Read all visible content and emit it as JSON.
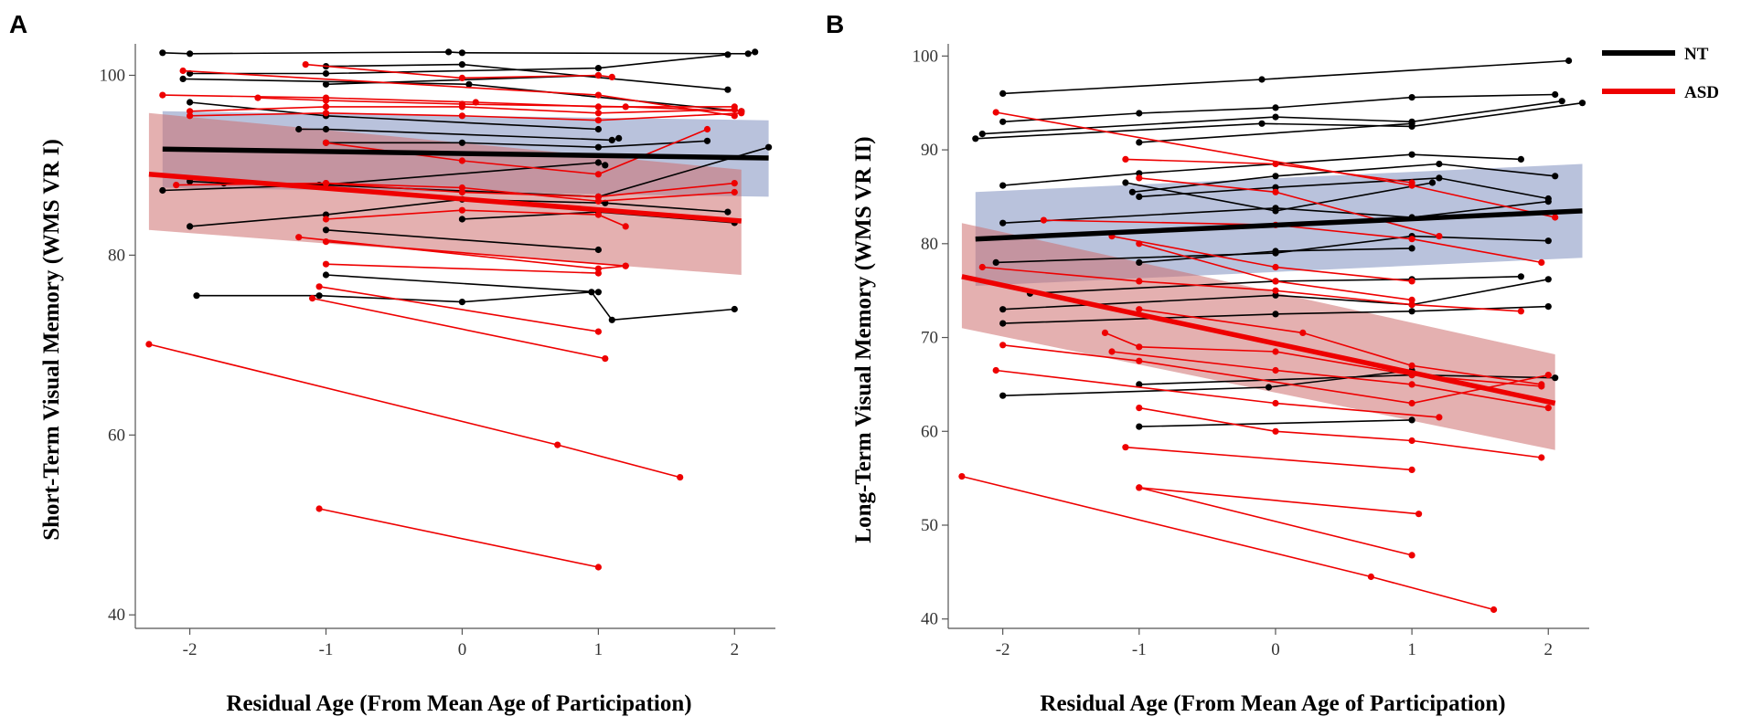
{
  "colors": {
    "nt": "#000000",
    "asd": "#ee0000",
    "nt_band": "#7f8fbf",
    "asd_band": "#cd6f6f",
    "axis": "#555555"
  },
  "legend": [
    {
      "label": "NT",
      "color": "#000000"
    },
    {
      "label": "ASD",
      "color": "#ee0000"
    }
  ],
  "chart_data": [
    {
      "type": "line",
      "panel": "A",
      "xlabel": "Residual Age (From Mean Age of Participation)",
      "ylabel": "Short-Term Visual Memory (WMS VR I)",
      "xlim": [
        -2.4,
        2.3
      ],
      "ylim": [
        38.5,
        103.5
      ],
      "xticks": [
        -2,
        -1,
        0,
        1,
        2
      ],
      "xtick_labels": [
        "-2",
        "-1",
        "0",
        "1",
        "2"
      ],
      "yticks": [
        40,
        60,
        80,
        100
      ],
      "ytick_labels": [
        "40",
        "60",
        "80",
        "100"
      ],
      "fits": [
        {
          "group": "NT",
          "x": [
            -2.2,
            2.25
          ],
          "y": [
            91.8,
            90.8
          ],
          "ci_upper": [
            96.0,
            95.0
          ],
          "ci_lower": [
            87.5,
            86.5
          ]
        },
        {
          "group": "ASD",
          "x": [
            -2.3,
            2.05
          ],
          "y": [
            89.0,
            83.8
          ],
          "ci_upper": [
            95.8,
            89.5
          ],
          "ci_lower": [
            82.8,
            77.8
          ]
        }
      ],
      "participants": [
        {
          "group": "NT",
          "x": [
            -2.2,
            -2.0,
            -0.1,
            0.0,
            2.1,
            2.15
          ],
          "y": [
            102.5,
            102.4,
            102.6,
            102.5,
            102.4,
            102.6
          ]
        },
        {
          "group": "NT",
          "x": [
            -2.0,
            -1.0,
            1.0,
            1.95
          ],
          "y": [
            100.2,
            100.2,
            100.8,
            102.3
          ]
        },
        {
          "group": "NT",
          "x": [
            -2.05,
            0.05,
            2.05
          ],
          "y": [
            99.6,
            99.0,
            96.0
          ]
        },
        {
          "group": "NT",
          "x": [
            -1.0,
            0.0,
            1.95
          ],
          "y": [
            101.0,
            101.2,
            98.4
          ]
        },
        {
          "group": "NT",
          "x": [
            -1.0,
            1.0
          ],
          "y": [
            99.0,
            100.0
          ]
        },
        {
          "group": "NT",
          "x": [
            -2.0,
            -1.0,
            1.0
          ],
          "y": [
            97.0,
            95.5,
            94.0
          ]
        },
        {
          "group": "NT",
          "x": [
            -1.2,
            -1.0,
            1.1,
            1.15
          ],
          "y": [
            94.0,
            94.0,
            92.8,
            93.0
          ]
        },
        {
          "group": "NT",
          "x": [
            -1.0,
            0.0,
            1.0,
            1.8
          ],
          "y": [
            92.5,
            92.5,
            92.0,
            92.7
          ]
        },
        {
          "group": "NT",
          "x": [
            -2.2,
            -1.05,
            1.0,
            1.05
          ],
          "y": [
            87.2,
            87.8,
            90.3,
            90.0
          ]
        },
        {
          "group": "NT",
          "x": [
            -2.0,
            -1.75,
            -1.0,
            1.0,
            2.25
          ],
          "y": [
            88.2,
            88.0,
            87.8,
            86.5,
            92.0
          ]
        },
        {
          "group": "NT",
          "x": [
            -2.0,
            -1.0,
            0.0,
            1.05,
            1.95
          ],
          "y": [
            83.2,
            84.5,
            86.2,
            85.8,
            84.8
          ]
        },
        {
          "group": "NT",
          "x": [
            0.0,
            1.0,
            2.0
          ],
          "y": [
            84.0,
            84.8,
            83.6
          ]
        },
        {
          "group": "NT",
          "x": [
            -1.0,
            1.0
          ],
          "y": [
            82.8,
            80.6
          ]
        },
        {
          "group": "NT",
          "x": [
            -1.0,
            1.0
          ],
          "y": [
            77.8,
            75.9
          ]
        },
        {
          "group": "NT",
          "x": [
            -1.95,
            -1.05,
            0.0,
            0.95,
            1.1,
            2.0
          ],
          "y": [
            75.5,
            75.5,
            74.8,
            75.9,
            72.8,
            74.0
          ]
        },
        {
          "group": "ASD",
          "x": [
            -1.15,
            0.0,
            1.0,
            1.1
          ],
          "y": [
            101.2,
            99.7,
            100.0,
            99.8
          ]
        },
        {
          "group": "ASD",
          "x": [
            -2.05,
            1.0,
            2.0
          ],
          "y": [
            100.5,
            97.8,
            95.5
          ]
        },
        {
          "group": "ASD",
          "x": [
            -2.2,
            -1.0,
            0.1,
            1.0,
            2.0
          ],
          "y": [
            97.8,
            97.5,
            97.0,
            96.5,
            96.5
          ]
        },
        {
          "group": "ASD",
          "x": [
            -1.5,
            -1.0,
            0.0,
            1.2,
            2.05
          ],
          "y": [
            97.5,
            97.2,
            96.8,
            96.5,
            96.0
          ]
        },
        {
          "group": "ASD",
          "x": [
            -2.0,
            -1.0,
            0.0,
            1.0,
            2.0
          ],
          "y": [
            96.0,
            96.5,
            96.5,
            95.8,
            96.2
          ]
        },
        {
          "group": "ASD",
          "x": [
            -2.0,
            -1.0,
            0.0,
            1.0,
            2.05
          ],
          "y": [
            95.5,
            95.8,
            95.5,
            95.0,
            95.8
          ]
        },
        {
          "group": "ASD",
          "x": [
            -1.0,
            0.0,
            1.0,
            1.8
          ],
          "y": [
            92.5,
            90.5,
            89.0,
            94.0
          ]
        },
        {
          "group": "ASD",
          "x": [
            -2.1,
            -1.0,
            0.0,
            1.0,
            2.0
          ],
          "y": [
            87.8,
            88.0,
            87.0,
            86.5,
            88.0
          ]
        },
        {
          "group": "ASD",
          "x": [
            -1.0,
            0.0,
            1.0,
            2.0
          ],
          "y": [
            88.0,
            87.5,
            86.0,
            87.0
          ]
        },
        {
          "group": "ASD",
          "x": [
            -1.0,
            0.0,
            1.0,
            1.2
          ],
          "y": [
            84.0,
            85.0,
            84.5,
            83.2
          ]
        },
        {
          "group": "ASD",
          "x": [
            -1.2,
            1.0,
            1.2
          ],
          "y": [
            82.0,
            78.5,
            78.8
          ]
        },
        {
          "group": "ASD",
          "x": [
            -1.0,
            1.2
          ],
          "y": [
            81.5,
            78.8
          ]
        },
        {
          "group": "ASD",
          "x": [
            -1.0,
            1.0
          ],
          "y": [
            79.0,
            78.0
          ]
        },
        {
          "group": "ASD",
          "x": [
            -1.05,
            1.0
          ],
          "y": [
            76.5,
            71.5
          ]
        },
        {
          "group": "ASD",
          "x": [
            -1.1,
            1.05
          ],
          "y": [
            75.2,
            68.5
          ]
        },
        {
          "group": "ASD",
          "x": [
            -2.3,
            0.7,
            1.6
          ],
          "y": [
            70.1,
            58.9,
            55.3
          ]
        },
        {
          "group": "ASD",
          "x": [
            -1.05,
            1.0
          ],
          "y": [
            51.8,
            45.3
          ]
        }
      ]
    },
    {
      "type": "line",
      "panel": "B",
      "xlabel": "Residual Age (From Mean Age of Participation)",
      "ylabel": "Long-Term Visual Memory (WMS VR II)",
      "xlim": [
        -2.4,
        2.3
      ],
      "ylim": [
        39.0,
        101.3
      ],
      "xticks": [
        -2,
        -1,
        0,
        1,
        2
      ],
      "xtick_labels": [
        "-2",
        "-1",
        "0",
        "1",
        "2"
      ],
      "yticks": [
        40,
        50,
        60,
        70,
        80,
        90,
        100
      ],
      "ytick_labels": [
        "40",
        "50",
        "60",
        "70",
        "80",
        "90",
        "100"
      ],
      "fits": [
        {
          "group": "NT",
          "x": [
            -2.2,
            2.25
          ],
          "y": [
            80.5,
            83.5
          ],
          "ci_upper": [
            85.5,
            88.5
          ],
          "ci_lower": [
            75.5,
            78.5
          ]
        },
        {
          "group": "ASD",
          "x": [
            -2.3,
            2.05
          ],
          "y": [
            76.5,
            63.0
          ],
          "ci_upper": [
            82.2,
            68.2
          ],
          "ci_lower": [
            71.0,
            58.0
          ]
        }
      ],
      "participants": [
        {
          "group": "NT",
          "x": [
            -2.0,
            -0.1,
            2.15
          ],
          "y": [
            96.0,
            97.5,
            99.5
          ]
        },
        {
          "group": "NT",
          "x": [
            -2.0,
            -1.0,
            0.0,
            1.0,
            2.05
          ],
          "y": [
            93.0,
            93.9,
            94.5,
            95.6,
            95.9
          ]
        },
        {
          "group": "NT",
          "x": [
            -2.15,
            0.0,
            1.0,
            2.1
          ],
          "y": [
            91.7,
            93.5,
            93.0,
            95.2
          ]
        },
        {
          "group": "NT",
          "x": [
            -2.2,
            -0.1,
            1.0,
            2.25
          ],
          "y": [
            91.2,
            92.8,
            92.5,
            95.0
          ]
        },
        {
          "group": "NT",
          "x": [
            -1.0,
            1.0
          ],
          "y": [
            90.8,
            92.8
          ]
        },
        {
          "group": "NT",
          "x": [
            -2.0,
            -1.0,
            1.0,
            1.8
          ],
          "y": [
            86.2,
            87.5,
            89.5,
            89.0
          ]
        },
        {
          "group": "NT",
          "x": [
            -1.05,
            0.0,
            1.2,
            2.05
          ],
          "y": [
            85.5,
            87.2,
            88.5,
            87.2
          ]
        },
        {
          "group": "NT",
          "x": [
            -1.0,
            0.0,
            1.2,
            2.0
          ],
          "y": [
            85.0,
            86.0,
            87.0,
            84.8
          ]
        },
        {
          "group": "NT",
          "x": [
            -1.1,
            0.0,
            1.15
          ],
          "y": [
            86.5,
            83.5,
            86.5
          ]
        },
        {
          "group": "NT",
          "x": [
            -2.0,
            0.0,
            1.0,
            2.0
          ],
          "y": [
            82.2,
            83.8,
            82.8,
            84.5
          ]
        },
        {
          "group": "NT",
          "x": [
            -2.05,
            0.0,
            1.0,
            2.0
          ],
          "y": [
            78.0,
            79.0,
            80.8,
            80.3
          ]
        },
        {
          "group": "NT",
          "x": [
            -1.0,
            0.0,
            1.0
          ],
          "y": [
            78.0,
            79.2,
            79.5
          ]
        },
        {
          "group": "NT",
          "x": [
            -1.8,
            0.0,
            1.0,
            1.8
          ],
          "y": [
            74.7,
            76.0,
            76.2,
            76.5
          ]
        },
        {
          "group": "NT",
          "x": [
            -2.0,
            0.0,
            1.0,
            2.0
          ],
          "y": [
            73.0,
            74.5,
            73.5,
            76.2
          ]
        },
        {
          "group": "NT",
          "x": [
            -2.0,
            0.0,
            1.0,
            2.0
          ],
          "y": [
            71.5,
            72.5,
            72.8,
            73.3
          ]
        },
        {
          "group": "NT",
          "x": [
            -1.0,
            1.0,
            2.05
          ],
          "y": [
            65.0,
            66.0,
            65.7
          ]
        },
        {
          "group": "NT",
          "x": [
            -2.0,
            -0.05,
            1.0
          ],
          "y": [
            63.8,
            64.7,
            66.5
          ]
        },
        {
          "group": "NT",
          "x": [
            -1.0,
            1.0
          ],
          "y": [
            60.5,
            61.2
          ]
        },
        {
          "group": "ASD",
          "x": [
            -2.05,
            1.0,
            2.05
          ],
          "y": [
            94.0,
            86.2,
            82.8
          ]
        },
        {
          "group": "ASD",
          "x": [
            -1.1,
            0.0,
            1.0
          ],
          "y": [
            89.0,
            88.5,
            86.5
          ]
        },
        {
          "group": "ASD",
          "x": [
            -1.0,
            0.0,
            1.2
          ],
          "y": [
            87.0,
            85.5,
            80.8
          ]
        },
        {
          "group": "ASD",
          "x": [
            -1.7,
            0.0,
            1.0,
            1.95
          ],
          "y": [
            82.5,
            82.0,
            80.5,
            78.0
          ]
        },
        {
          "group": "ASD",
          "x": [
            -1.2,
            0.0,
            1.0
          ],
          "y": [
            80.8,
            77.5,
            76.0
          ]
        },
        {
          "group": "ASD",
          "x": [
            -1.0,
            0.0,
            1.0
          ],
          "y": [
            80.0,
            76.0,
            74.0
          ]
        },
        {
          "group": "ASD",
          "x": [
            -2.15,
            -1.0,
            0.0,
            1.0,
            1.8
          ],
          "y": [
            77.5,
            76.0,
            75.0,
            73.5,
            72.8
          ]
        },
        {
          "group": "ASD",
          "x": [
            -1.0,
            0.2,
            1.0,
            1.95
          ],
          "y": [
            73.0,
            70.5,
            67.0,
            65.0
          ]
        },
        {
          "group": "ASD",
          "x": [
            -1.25,
            -1.0,
            0.0,
            1.0,
            1.95
          ],
          "y": [
            70.5,
            69.0,
            68.5,
            66.0,
            64.8
          ]
        },
        {
          "group": "ASD",
          "x": [
            -1.2,
            0.0,
            1.0,
            2.0
          ],
          "y": [
            68.5,
            66.5,
            65.0,
            62.5
          ]
        },
        {
          "group": "ASD",
          "x": [
            -2.0,
            -1.0,
            1.0,
            2.0
          ],
          "y": [
            69.2,
            67.5,
            63.0,
            66.0
          ]
        },
        {
          "group": "ASD",
          "x": [
            -2.05,
            0.0,
            1.2
          ],
          "y": [
            66.5,
            63.0,
            61.5
          ]
        },
        {
          "group": "ASD",
          "x": [
            -1.0,
            0.0,
            1.0,
            1.95
          ],
          "y": [
            62.5,
            60.0,
            59.0,
            57.2
          ]
        },
        {
          "group": "ASD",
          "x": [
            -1.1,
            1.0
          ],
          "y": [
            58.3,
            55.9
          ]
        },
        {
          "group": "ASD",
          "x": [
            -1.0,
            1.05
          ],
          "y": [
            54.0,
            51.2
          ]
        },
        {
          "group": "ASD",
          "x": [
            -1.0,
            1.0
          ],
          "y": [
            54.0,
            46.8
          ]
        },
        {
          "group": "ASD",
          "x": [
            -2.3,
            0.7,
            1.6
          ],
          "y": [
            55.2,
            44.5,
            41.0
          ]
        }
      ]
    }
  ],
  "panels": [
    {
      "letter": "A"
    },
    {
      "letter": "B"
    }
  ]
}
